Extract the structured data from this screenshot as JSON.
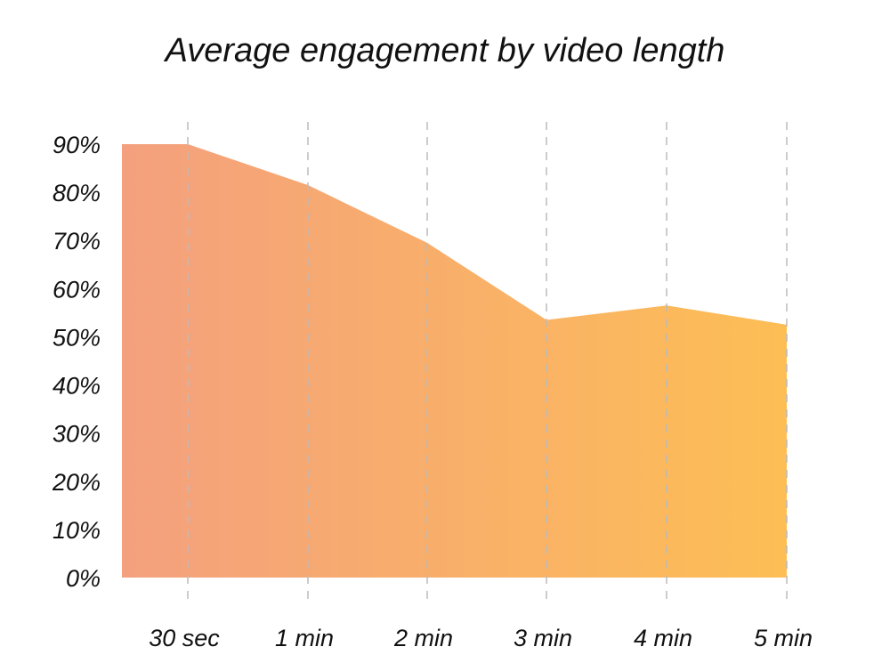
{
  "chart_data": {
    "type": "area",
    "title": "Average engagement by video length",
    "categories": [
      "30 sec",
      "1 min",
      "2 min",
      "3 min",
      "4 min",
      "5 min"
    ],
    "values": [
      90,
      81.5,
      69.5,
      53.5,
      56.5,
      52.5
    ],
    "y_ticks": [
      "0%",
      "10%",
      "20%",
      "30%",
      "40%",
      "50%",
      "60%",
      "70%",
      "80%",
      "90%"
    ],
    "ylim": [
      0,
      90
    ],
    "grid": "vertical-dashed",
    "colors": {
      "gradient_start": "#F4A07E",
      "gradient_end": "#FDBE55",
      "gridline": "#BBBBBB",
      "text": "#111111"
    }
  }
}
